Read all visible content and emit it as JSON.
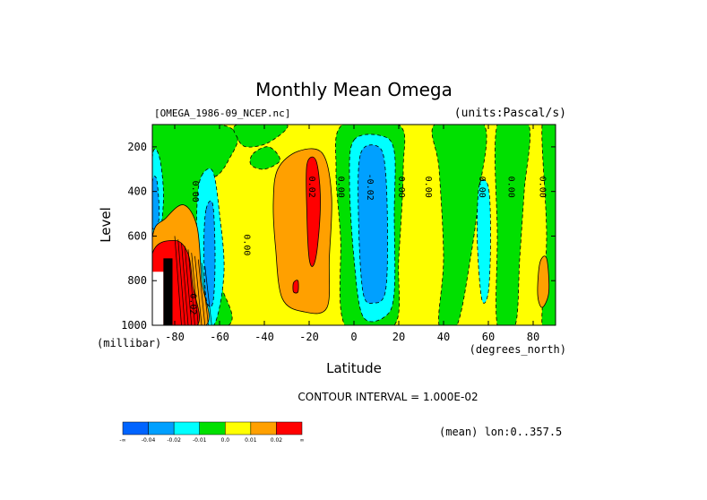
{
  "chart_data": {
    "type": "heatmap",
    "title": "Monthly Mean Omega",
    "dataset_label": "[OMEGA_1986-09_NCEP.nc]",
    "units_label": "(units:Pascal/s)",
    "xlabel": "Latitude",
    "x_units": "(degrees_north)",
    "ylabel": "Level",
    "y_units": "(millibar)",
    "xlim": [
      -90,
      90
    ],
    "ylim": [
      1000,
      100
    ],
    "x_ticks": [
      -80,
      -60,
      -40,
      -20,
      0,
      20,
      40,
      60,
      80
    ],
    "y_ticks": [
      200,
      400,
      600,
      800,
      1000
    ],
    "contour_interval_text": "CONTOUR INTERVAL = 1.000E-02",
    "mean_note": "(mean) lon:0..357.5",
    "contour_labels": [
      {
        "text": "0.00",
        "x": -72,
        "y": 400
      },
      {
        "text": "0.00",
        "x": -49,
        "y": 640
      },
      {
        "text": "0.02",
        "x": -20,
        "y": 380
      },
      {
        "text": "0.00",
        "x": -7,
        "y": 380
      },
      {
        "text": "-0.02",
        "x": 6,
        "y": 380
      },
      {
        "text": "0.00",
        "x": 20,
        "y": 380
      },
      {
        "text": "0.00",
        "x": 32,
        "y": 380
      },
      {
        "text": "0.00",
        "x": 56,
        "y": 380
      },
      {
        "text": "0.00",
        "x": 69,
        "y": 380
      },
      {
        "text": "0.00",
        "x": 83,
        "y": 380
      },
      {
        "text": "0.02",
        "x": -73,
        "y": 905
      }
    ],
    "colorbar": {
      "colors": [
        "#0064ff",
        "#00a0ff",
        "#00ffff",
        "#00e000",
        "#ffff00",
        "#ffa000",
        "#ff0000"
      ],
      "labels": [
        "-∞",
        "-0.04",
        "-0.02",
        "-0.01",
        "0.0",
        "0.01",
        "0.02",
        "∞"
      ]
    },
    "background_color": "#ffff00"
  }
}
